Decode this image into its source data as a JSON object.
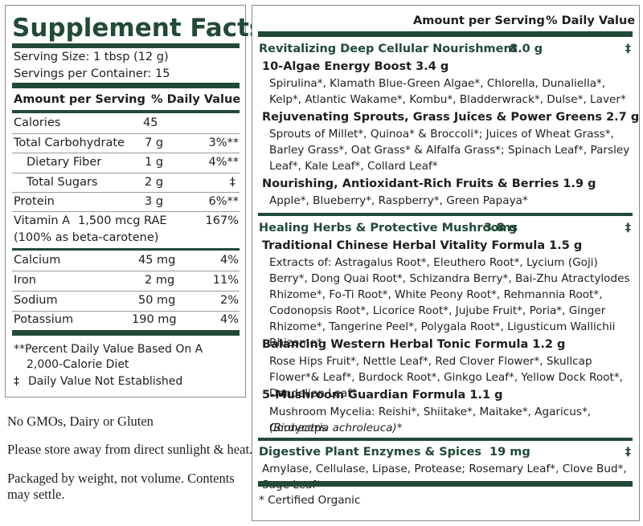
{
  "facts": {
    "title": "Supplement Facts",
    "serving_size": "Serving Size: 1 tbsp (12 g)",
    "servings_per_container": "Servings per Container: 15",
    "header_amount": "Amount per Serving",
    "header_dv": "% Daily Value",
    "rows": [
      {
        "name": "Calories",
        "amount": "45",
        "dv": ""
      },
      {
        "name": "Total Carbohydrate",
        "amount": "7 g",
        "dv": "3%**"
      },
      {
        "name": "Dietary Fiber",
        "amount": "1 g",
        "dv": "4%**"
      },
      {
        "name": "Total Sugars",
        "amount": "2 g",
        "dv": "‡"
      },
      {
        "name": "Protein",
        "amount": "3 g",
        "dv": "6%**"
      },
      {
        "name": "Vitamin A",
        "amount": "1,500 mcg RAE",
        "dv": "167%",
        "note": "(100% as beta-carotene)"
      },
      {
        "name": "Calcium",
        "amount": "45 mg",
        "dv": "4%"
      },
      {
        "name": "Iron",
        "amount": "2 mg",
        "dv": "11%"
      },
      {
        "name": "Sodium",
        "amount": "50 mg",
        "dv": "2%"
      },
      {
        "name": "Potassium",
        "amount": "190 mg",
        "dv": "4%"
      }
    ],
    "footnote_1a": "**Percent Daily Value Based On A",
    "footnote_1b": "2,000-Calorie Diet",
    "footnote_2_symbol": "‡",
    "footnote_2": "Daily Value Not Established"
  },
  "notes": {
    "line1": "No GMOs, Dairy or Gluten",
    "line2": "Please store away from direct sunlight & heat.",
    "line3a": "Packaged by weight, not volume. Contents",
    "line3b": "may settle."
  },
  "blend": {
    "header_amount": "Amount per Serving",
    "header_dv": "% Daily Value",
    "sections": [
      {
        "name": "Revitalizing Deep Cellular Nourishment",
        "amount": "8.0 g",
        "dv": "‡",
        "groups": [
          {
            "title": "10-Algae Energy Boost 3.4 g",
            "text": "Spirulina*, Klamath Blue-Green Algae*, Chlorella, Dunaliella*, Kelp*, Atlantic Wakame*, Kombu*, Bladderwrack*, Dulse*, Laver*"
          },
          {
            "title": "Rejuvenating Sprouts, Grass Juices & Power Greens 2.7 g",
            "text": "Sprouts of Millet*, Quinoa* & Broccoli*; Juices of Wheat Grass*, Barley Grass*, Oat Grass* & Alfalfa Grass*; Spinach Leaf*, Parsley Leaf*, Kale Leaf*, Collard Leaf*"
          },
          {
            "title": "Nourishing, Antioxidant-Rich Fruits & Berries 1.9 g",
            "text": "Apple*, Blueberry*, Raspberry*, Green Papaya*"
          }
        ]
      },
      {
        "name": "Healing Herbs & Protective Mushrooms",
        "amount": "3.8 g",
        "dv": "‡",
        "groups": [
          {
            "title": "Traditional Chinese Herbal Vitality Formula 1.5 g",
            "text": "Extracts of: Astragalus Root*, Eleuthero Root*, Lycium (Goji) Berry*, Dong Quai Root*, Schizandra Berry*, Bai-Zhu Atractylodes Rhizome*, Fo-Ti Root*, White Peony Root*, Rehmannia Root*, Codonopsis Root*, Licorice Root*, Jujube Fruit*, Poria*, Ginger Rhizome*, Tangerine Peel*, Polygala Root*, Ligusticum Wallichii Rhizome*"
          },
          {
            "title": "Balancing Western Herbal Tonic Formula 1.2 g",
            "text": "Rose Hips Fruit*, Nettle Leaf*, Red Clover Flower*, Skullcap Flower*& Leaf*, Burdock Root*, Ginkgo Leaf*, Yellow Dock Root*, Dandelion Leaf*"
          },
          {
            "title": "5-Mushroom Guardian Formula 1.1 g",
            "text": "Mushroom Mycelia: Reishi*, Shiitake*, Maitake*, Agaricus*, Cordyceps",
            "italic": "(Bionectria achroleuca)*"
          }
        ]
      },
      {
        "name": "Digestive Plant Enzymes & Spices",
        "amount": "19 mg",
        "dv": "‡",
        "groups": [
          {
            "title": "",
            "text": "Amylase, Cellulase, Lipase, Protease; Rosemary Leaf*, Clove Bud*, Sage Leaf*"
          }
        ]
      }
    ],
    "certified": "* Certified Organic"
  },
  "colors": {
    "accent": "#214a37",
    "rule": "#9a9a9a",
    "text": "#1e1e1e"
  }
}
